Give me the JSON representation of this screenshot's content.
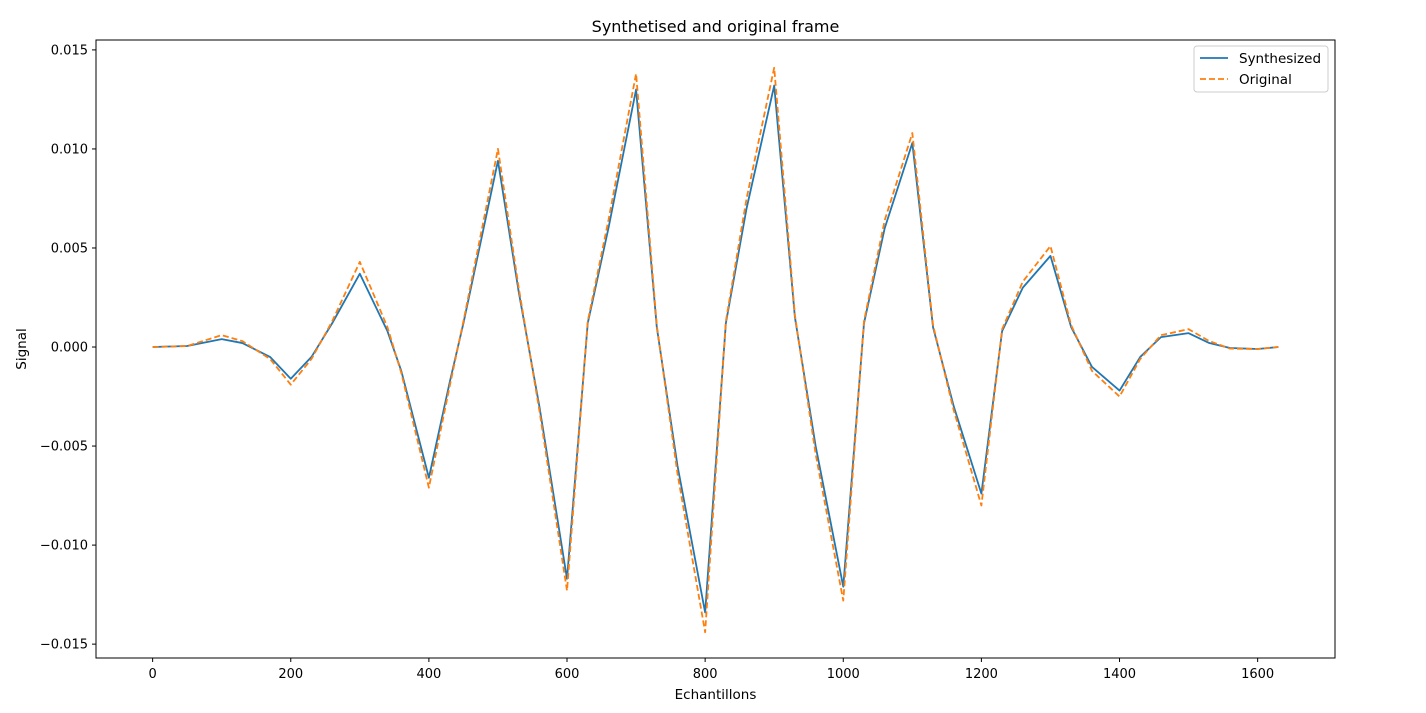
{
  "chart_data": {
    "type": "line",
    "title": "Synthetised and original frame",
    "xlabel": "Echantillons",
    "ylabel": "Signal",
    "xlim": [
      -82,
      1712
    ],
    "ylim": [
      -0.0157,
      0.0155
    ],
    "xticks": [
      0,
      200,
      400,
      600,
      800,
      1000,
      1200,
      1400,
      1600
    ],
    "xtick_labels": [
      "0",
      "200",
      "400",
      "600",
      "800",
      "1000",
      "1200",
      "1400",
      "1600"
    ],
    "yticks": [
      -0.015,
      -0.01,
      -0.005,
      0.0,
      0.005,
      0.01,
      0.015
    ],
    "ytick_labels": [
      "−0.015",
      "−0.010",
      "−0.005",
      "0.000",
      "0.005",
      "0.010",
      "0.015"
    ],
    "grid": false,
    "legend_position": "top-right",
    "series": [
      {
        "name": "Synthesized",
        "color": "#1f77b4",
        "style": "solid",
        "x": [
          0,
          50,
          100,
          130,
          170,
          200,
          230,
          260,
          300,
          340,
          360,
          400,
          430,
          450,
          500,
          530,
          560,
          600,
          630,
          660,
          700,
          730,
          760,
          800,
          830,
          860,
          900,
          930,
          960,
          1000,
          1030,
          1060,
          1100,
          1130,
          1160,
          1200,
          1230,
          1260,
          1300,
          1330,
          1360,
          1400,
          1430,
          1460,
          1500,
          1530,
          1560,
          1600,
          1630
        ],
        "y": [
          0.0,
          5e-05,
          0.0004,
          0.0002,
          -0.0005,
          -0.0016,
          -0.0005,
          0.0012,
          0.0037,
          0.0008,
          -0.0012,
          -0.0066,
          -0.0018,
          0.0012,
          0.0094,
          0.0028,
          -0.003,
          -0.0117,
          0.0012,
          0.006,
          0.013,
          0.001,
          -0.006,
          -0.0134,
          0.0012,
          0.007,
          0.0132,
          0.0015,
          -0.005,
          -0.0121,
          0.0012,
          0.006,
          0.0103,
          0.001,
          -0.003,
          -0.0074,
          0.0008,
          0.003,
          0.0046,
          0.001,
          -0.001,
          -0.0022,
          -0.0005,
          0.0005,
          0.0007,
          0.0002,
          -5e-05,
          -0.0001,
          0.0
        ]
      },
      {
        "name": "Original",
        "color": "#ff7f0e",
        "style": "dashed",
        "x": [
          0,
          50,
          100,
          130,
          170,
          200,
          230,
          260,
          300,
          340,
          360,
          400,
          430,
          450,
          500,
          530,
          560,
          600,
          630,
          660,
          700,
          730,
          760,
          800,
          830,
          860,
          900,
          930,
          960,
          1000,
          1030,
          1060,
          1100,
          1130,
          1160,
          1200,
          1230,
          1260,
          1300,
          1330,
          1360,
          1400,
          1430,
          1460,
          1500,
          1530,
          1560,
          1600,
          1630
        ],
        "y": [
          0.0,
          5e-05,
          0.0006,
          0.0003,
          -0.0006,
          -0.0019,
          -0.0006,
          0.0013,
          0.0043,
          0.001,
          -0.0013,
          -0.0071,
          -0.002,
          0.0013,
          0.01,
          0.003,
          -0.0032,
          -0.0123,
          0.0013,
          0.0064,
          0.0138,
          0.0011,
          -0.0064,
          -0.0144,
          0.0013,
          0.0075,
          0.0141,
          0.0016,
          -0.0054,
          -0.0128,
          0.0013,
          0.0064,
          0.0108,
          0.0011,
          -0.0032,
          -0.008,
          0.0009,
          0.0033,
          0.0051,
          0.0011,
          -0.0012,
          -0.0025,
          -0.0006,
          0.0006,
          0.0009,
          0.0003,
          -8e-05,
          -0.0001,
          0.0
        ]
      }
    ]
  }
}
